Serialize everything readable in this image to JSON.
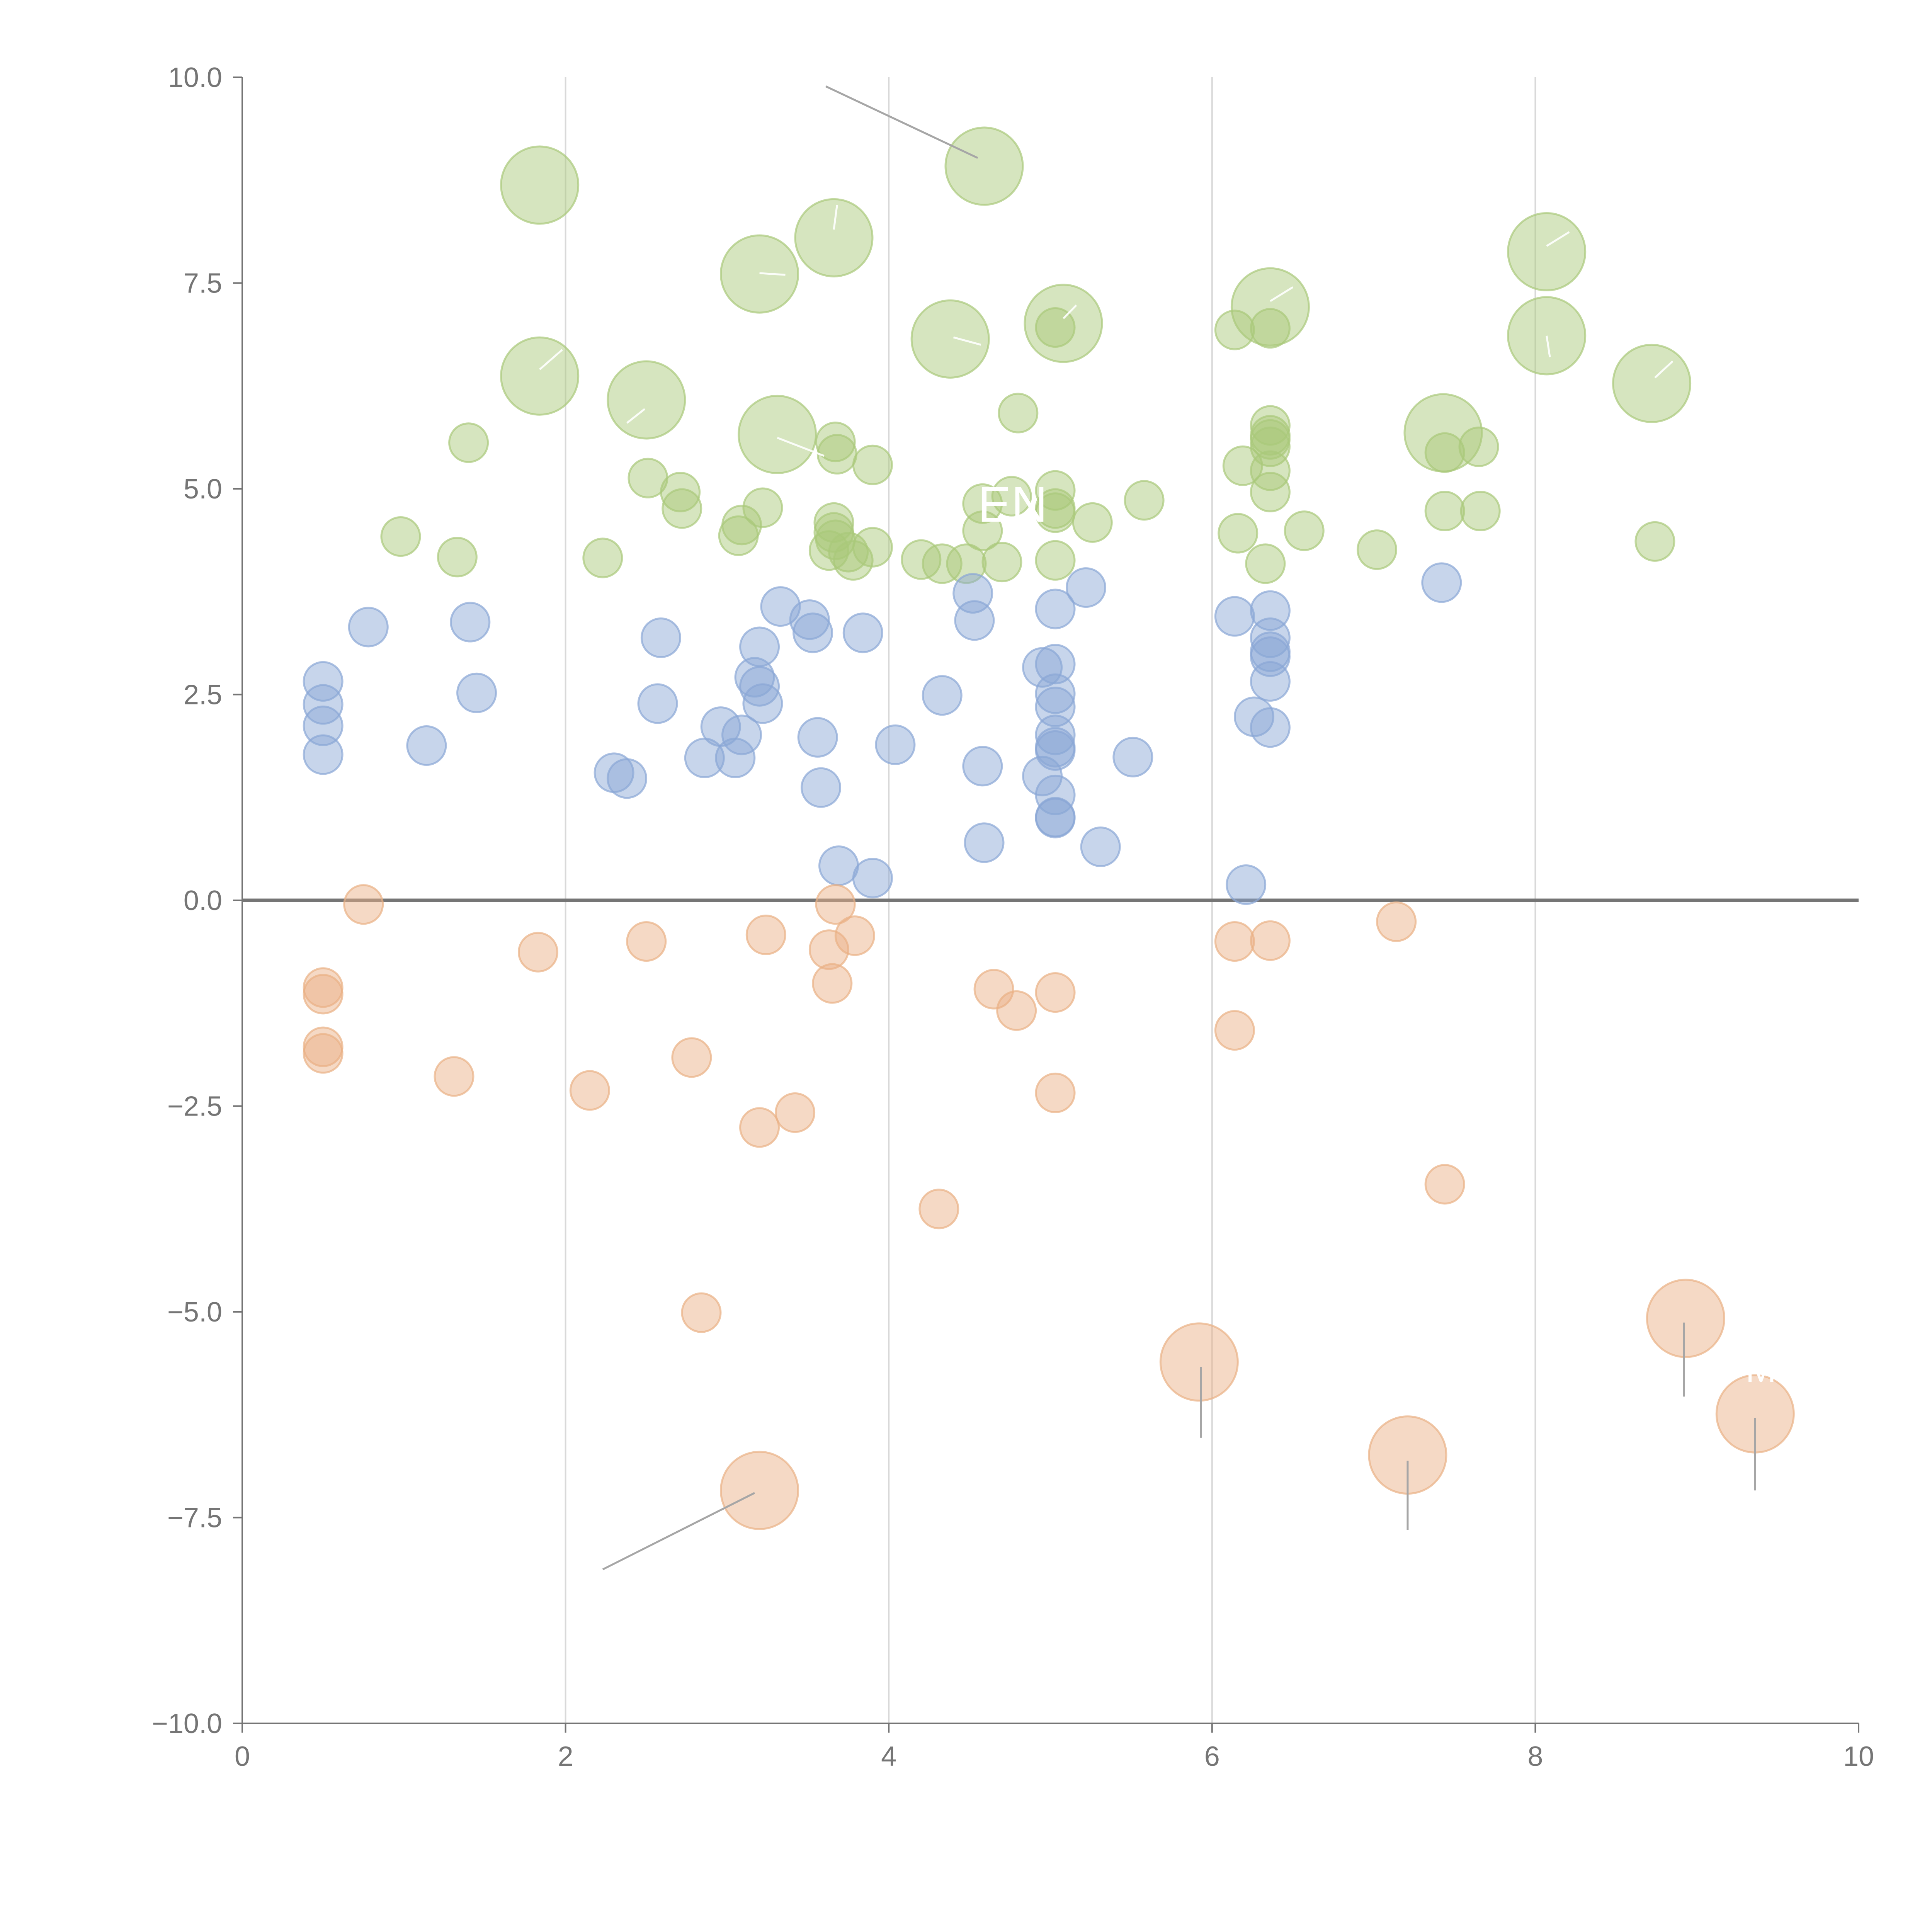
{
  "chart_data": {
    "type": "scatter",
    "title": "",
    "xlabel": "",
    "ylabel": "",
    "xlim": [
      0,
      10
    ],
    "ylim": [
      -10,
      10
    ],
    "x_ticks": [
      "0",
      "2",
      "4",
      "6",
      "8",
      "10"
    ],
    "y_ticks": [
      "10.0",
      "7.5",
      "5.0",
      "2.5",
      "0.0",
      "−2.5",
      "−5.0",
      "−7.5",
      "−10.0"
    ],
    "x_tick_values": [
      0,
      2,
      4,
      6,
      8,
      10
    ],
    "y_tick_values": [
      10,
      7.5,
      5,
      2.5,
      0,
      -2.5,
      -5,
      -7.5,
      -10
    ],
    "gridlines_x": [
      2,
      4,
      6,
      8
    ],
    "reference_line_y": 0,
    "annotations": [
      {
        "text": "EN",
        "x": 4.55,
        "y": 4.6,
        "label_size": "large"
      },
      {
        "text": "MI",
        "x": 9.3,
        "y": -5.85,
        "label_size": "small"
      }
    ],
    "series": [
      {
        "name": "positive-high",
        "color": "#a9c97a",
        "points": [
          [
            0.98,
            4.42
          ],
          [
            1.33,
            4.17
          ],
          [
            1.4,
            5.56
          ],
          [
            2.23,
            4.16
          ],
          [
            2.51,
            5.13
          ],
          [
            2.71,
            4.96
          ],
          [
            2.72,
            4.76
          ],
          [
            3.07,
            4.43
          ],
          [
            3.09,
            4.56
          ],
          [
            3.22,
            4.77
          ],
          [
            3.63,
            4.25
          ],
          [
            3.66,
            4.59
          ],
          [
            3.66,
            4.47
          ],
          [
            3.67,
            4.38
          ],
          [
            3.67,
            5.57
          ],
          [
            3.68,
            5.42
          ],
          [
            3.75,
            4.23
          ],
          [
            3.78,
            4.13
          ],
          [
            3.9,
            4.29
          ],
          [
            3.9,
            5.29
          ],
          [
            4.2,
            4.14
          ],
          [
            4.33,
            4.09
          ],
          [
            4.48,
            4.09
          ],
          [
            4.58,
            4.82
          ],
          [
            4.58,
            4.49
          ],
          [
            4.7,
            4.11
          ],
          [
            4.76,
            4.91
          ],
          [
            4.8,
            5.92
          ],
          [
            5.03,
            4.98
          ],
          [
            5.03,
            4.76
          ],
          [
            5.03,
            4.71
          ],
          [
            5.03,
            4.13
          ],
          [
            5.03,
            6.96
          ],
          [
            5.26,
            4.59
          ],
          [
            5.58,
            4.86
          ],
          [
            6.14,
            6.93
          ],
          [
            6.16,
            4.46
          ],
          [
            6.19,
            5.28
          ],
          [
            6.33,
            4.09
          ],
          [
            6.36,
            5.77
          ],
          [
            6.36,
            5.65
          ],
          [
            6.36,
            5.6
          ],
          [
            6.36,
            5.51
          ],
          [
            6.36,
            5.22
          ],
          [
            6.36,
            4.96
          ],
          [
            6.36,
            6.95
          ],
          [
            6.57,
            4.49
          ],
          [
            7.02,
            4.26
          ],
          [
            7.44,
            4.73
          ],
          [
            7.44,
            5.44
          ],
          [
            7.65,
            5.51
          ],
          [
            7.66,
            4.73
          ],
          [
            8.74,
            4.36
          ]
        ],
        "size": "small"
      },
      {
        "name": "positive-high-large",
        "color": "#a9c97a",
        "points": [
          [
            1.84,
            8.69
          ],
          [
            1.84,
            6.37
          ],
          [
            2.5,
            6.08
          ],
          [
            3.2,
            7.61
          ],
          [
            3.31,
            5.66
          ],
          [
            3.66,
            8.05
          ],
          [
            4.38,
            6.82
          ],
          [
            4.59,
            8.92
          ],
          [
            5.08,
            7.01
          ],
          [
            6.36,
            7.21
          ],
          [
            7.43,
            5.68
          ],
          [
            8.07,
            7.88
          ],
          [
            8.07,
            6.86
          ],
          [
            8.72,
            6.28
          ]
        ],
        "size": "large"
      },
      {
        "name": "positive-mid",
        "color": "#8aa7d6",
        "points": [
          [
            0.5,
            2.66
          ],
          [
            0.5,
            2.38
          ],
          [
            0.5,
            2.12
          ],
          [
            0.5,
            1.77
          ],
          [
            0.78,
            3.32
          ],
          [
            1.14,
            1.88
          ],
          [
            1.41,
            3.38
          ],
          [
            1.45,
            2.52
          ],
          [
            2.3,
            1.55
          ],
          [
            2.38,
            1.48
          ],
          [
            2.57,
            2.39
          ],
          [
            2.59,
            3.19
          ],
          [
            2.86,
            1.73
          ],
          [
            2.96,
            2.11
          ],
          [
            3.05,
            1.73
          ],
          [
            3.09,
            2.01
          ],
          [
            3.17,
            2.71
          ],
          [
            3.2,
            3.08
          ],
          [
            3.2,
            2.6
          ],
          [
            3.22,
            2.39
          ],
          [
            3.33,
            3.57
          ],
          [
            3.51,
            3.41
          ],
          [
            3.53,
            3.25
          ],
          [
            3.56,
            1.98
          ],
          [
            3.58,
            1.37
          ],
          [
            3.69,
            0.42
          ],
          [
            3.84,
            3.25
          ],
          [
            3.9,
            0.27
          ],
          [
            4.04,
            1.89
          ],
          [
            4.33,
            2.49
          ],
          [
            4.52,
            3.73
          ],
          [
            4.53,
            3.4
          ],
          [
            4.58,
            1.63
          ],
          [
            4.59,
            0.7
          ],
          [
            4.95,
            2.83
          ],
          [
            4.95,
            1.51
          ],
          [
            5.03,
            3.54
          ],
          [
            5.03,
            2.87
          ],
          [
            5.03,
            2.51
          ],
          [
            5.03,
            2.35
          ],
          [
            5.03,
            2.01
          ],
          [
            5.03,
            1.86
          ],
          [
            5.03,
            1.82
          ],
          [
            5.03,
            1.28
          ],
          [
            5.03,
            1.01
          ],
          [
            5.03,
            1.0
          ],
          [
            5.22,
            3.8
          ],
          [
            5.31,
            0.65
          ],
          [
            5.51,
            1.74
          ],
          [
            6.14,
            3.45
          ],
          [
            6.21,
            0.19
          ],
          [
            6.26,
            2.23
          ],
          [
            6.36,
            3.52
          ],
          [
            6.36,
            3.19
          ],
          [
            6.36,
            3.02
          ],
          [
            6.36,
            2.96
          ],
          [
            6.36,
            2.66
          ],
          [
            6.36,
            2.1
          ],
          [
            7.42,
            3.86
          ]
        ],
        "size": "small"
      },
      {
        "name": "negative",
        "color": "#eab085",
        "points": [
          [
            0.5,
            -1.06
          ],
          [
            0.5,
            -1.14
          ],
          [
            0.5,
            -1.78
          ],
          [
            0.5,
            -1.86
          ],
          [
            0.75,
            -0.05
          ],
          [
            1.31,
            -2.14
          ],
          [
            1.83,
            -0.63
          ],
          [
            2.15,
            -2.31
          ],
          [
            2.5,
            -0.5
          ],
          [
            2.78,
            -1.91
          ],
          [
            2.84,
            -5.01
          ],
          [
            3.2,
            -2.76
          ],
          [
            3.24,
            -0.42
          ],
          [
            3.42,
            -2.58
          ],
          [
            3.63,
            -0.6
          ],
          [
            3.65,
            -1.01
          ],
          [
            3.67,
            -0.05
          ],
          [
            3.79,
            -0.43
          ],
          [
            4.31,
            -3.75
          ],
          [
            4.65,
            -1.08
          ],
          [
            4.79,
            -1.34
          ],
          [
            5.03,
            -1.12
          ],
          [
            5.03,
            -2.34
          ],
          [
            6.14,
            -0.5
          ],
          [
            6.14,
            -1.58
          ],
          [
            6.36,
            -0.49
          ],
          [
            7.14,
            -0.26
          ],
          [
            7.44,
            -3.45
          ]
        ],
        "size": "small"
      },
      {
        "name": "negative-large",
        "color": "#eab085",
        "points": [
          [
            3.2,
            -7.17
          ],
          [
            5.92,
            -5.61
          ],
          [
            7.21,
            -6.74
          ],
          [
            8.93,
            -5.08
          ],
          [
            9.36,
            -6.24
          ]
        ],
        "size": "large"
      }
    ]
  }
}
